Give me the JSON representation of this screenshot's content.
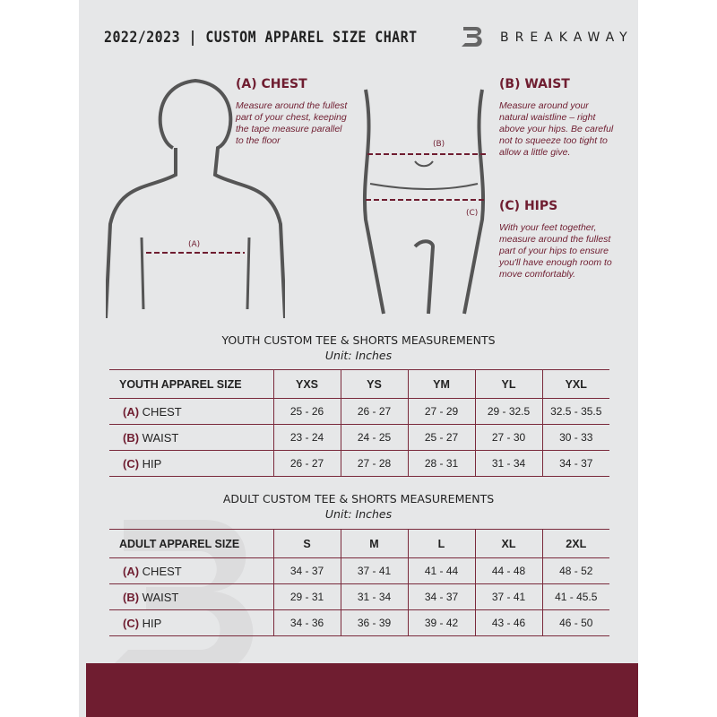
{
  "header": {
    "title": "2022/2023  |  CUSTOM APPAREL SIZE CHART",
    "brand": "BREAKAWAY"
  },
  "chest": {
    "heading": "(A) CHEST",
    "text": "Measure around the fullest part of your chest, keeping the tape measure parallel to the floor",
    "marker": "(A)"
  },
  "waist": {
    "heading": "(B) WAIST",
    "text": "Measure around your natural waistline – right above your hips. Be careful not to squeeze too tight to allow a little give.",
    "marker": "(B)"
  },
  "hips": {
    "heading": "(C) HIPS",
    "text": "With your feet together, measure around the fullest part of your hips to ensure you'll have enough room to move comfortably.",
    "marker": "(C)"
  },
  "youth": {
    "title": "YOUTH CUSTOM TEE & SHORTS MEASUREMENTS",
    "unit": "Unit: Inches",
    "header": "YOUTH APPAREL SIZE",
    "sizes": [
      "YXS",
      "YS",
      "YM",
      "YL",
      "YXL"
    ],
    "rows": [
      {
        "code": "(A)",
        "name": "CHEST",
        "values": [
          "25 - 26",
          "26 - 27",
          "27 - 29",
          "29 - 32.5",
          "32.5 - 35.5"
        ]
      },
      {
        "code": "(B)",
        "name": "WAIST",
        "values": [
          "23 - 24",
          "24 - 25",
          "25 - 27",
          "27 - 30",
          "30 - 33"
        ]
      },
      {
        "code": "(C)",
        "name": "HIP",
        "values": [
          "26 - 27",
          "27 - 28",
          "28 - 31",
          "31 - 34",
          "34 - 37"
        ]
      }
    ]
  },
  "adult": {
    "title": "ADULT CUSTOM TEE & SHORTS MEASUREMENTS",
    "unit": "Unit: Inches",
    "header": "ADULT APPAREL SIZE",
    "sizes": [
      "S",
      "M",
      "L",
      "XL",
      "2XL"
    ],
    "rows": [
      {
        "code": "(A)",
        "name": "CHEST",
        "values": [
          "34 - 37",
          "37 - 41",
          "41 - 44",
          "44 - 48",
          "48 - 52"
        ]
      },
      {
        "code": "(B)",
        "name": "WAIST",
        "values": [
          "29 - 31",
          "31 - 34",
          "34 - 37",
          "37 - 41",
          "41 - 45.5"
        ]
      },
      {
        "code": "(C)",
        "name": "HIP",
        "values": [
          "34 - 36",
          "36 - 39",
          "39 - 42",
          "43 - 46",
          "46 - 50"
        ]
      }
    ]
  },
  "colors": {
    "accent": "#6f1d30",
    "background": "#e6e7e8"
  }
}
